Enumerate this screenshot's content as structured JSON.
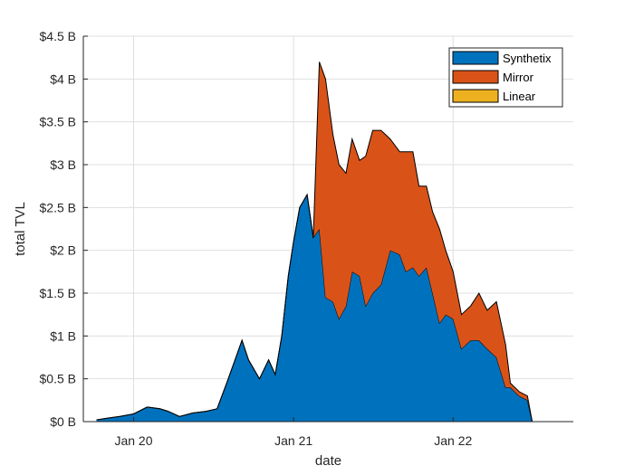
{
  "chart_data": {
    "type": "area",
    "stacked": true,
    "xlabel": "date",
    "ylabel": "total TVL",
    "x_unit": "date",
    "xlim": [
      "2019-09-08",
      "2022-10-03"
    ],
    "ylim": [
      0,
      4.5
    ],
    "x_ticks": [
      {
        "value": "2020-01-01",
        "label": "Jan 20"
      },
      {
        "value": "2021-01-01",
        "label": "Jan 21"
      },
      {
        "value": "2022-01-01",
        "label": "Jan 22"
      }
    ],
    "y_ticks": [
      {
        "value": 0,
        "label": "$0 B"
      },
      {
        "value": 0.5,
        "label": "$0.5 B"
      },
      {
        "value": 1,
        "label": "$1 B"
      },
      {
        "value": 1.5,
        "label": "$1.5 B"
      },
      {
        "value": 2,
        "label": "$2 B"
      },
      {
        "value": 2.5,
        "label": "$2.5 B"
      },
      {
        "value": 3,
        "label": "$3 B"
      },
      {
        "value": 3.5,
        "label": "$3.5 B"
      },
      {
        "value": 4,
        "label": "$4 B"
      },
      {
        "value": 4.5,
        "label": "$4.5 B"
      }
    ],
    "grid": true,
    "legend": "top-right",
    "x": [
      "2019-10-08",
      "2019-11-01",
      "2019-12-01",
      "2020-01-01",
      "2020-02-01",
      "2020-03-01",
      "2020-03-20",
      "2020-04-15",
      "2020-05-15",
      "2020-06-15",
      "2020-07-10",
      "2020-08-01",
      "2020-08-20",
      "2020-09-05",
      "2020-09-20",
      "2020-10-15",
      "2020-11-05",
      "2020-11-20",
      "2020-12-05",
      "2020-12-20",
      "2021-01-01",
      "2021-01-15",
      "2021-02-01",
      "2021-02-15",
      "2021-03-01",
      "2021-03-15",
      "2021-04-01",
      "2021-04-15",
      "2021-05-01",
      "2021-05-15",
      "2021-06-01",
      "2021-06-15",
      "2021-07-01",
      "2021-07-20",
      "2021-08-10",
      "2021-09-01",
      "2021-09-15",
      "2021-10-01",
      "2021-10-15",
      "2021-11-01",
      "2021-11-15",
      "2021-12-01",
      "2021-12-15",
      "2022-01-01",
      "2022-01-20",
      "2022-02-10",
      "2022-03-01",
      "2022-03-20",
      "2022-04-10",
      "2022-05-01",
      "2022-05-12",
      "2022-06-01",
      "2022-06-20",
      "2022-07-01"
    ],
    "series": [
      {
        "name": "Synthetix",
        "color": "#0072BD",
        "values": [
          0.02,
          0.04,
          0.06,
          0.09,
          0.17,
          0.15,
          0.12,
          0.06,
          0.1,
          0.12,
          0.15,
          0.45,
          0.72,
          0.95,
          0.72,
          0.5,
          0.72,
          0.55,
          1.0,
          1.7,
          2.1,
          2.5,
          2.65,
          2.15,
          2.25,
          1.45,
          1.4,
          1.2,
          1.35,
          1.75,
          1.7,
          1.35,
          1.5,
          1.6,
          2.0,
          1.95,
          1.75,
          1.8,
          1.7,
          1.8,
          1.5,
          1.15,
          1.25,
          1.2,
          0.85,
          0.95,
          0.95,
          0.85,
          0.75,
          0.4,
          0.4,
          0.3,
          0.25,
          0
        ]
      },
      {
        "name": "Mirror",
        "color": "#D95319",
        "values": [
          0,
          0,
          0,
          0,
          0,
          0,
          0,
          0,
          0,
          0,
          0,
          0,
          0,
          0,
          0,
          0,
          0,
          0,
          0,
          0,
          0,
          0,
          0,
          0,
          1.95,
          2.55,
          1.95,
          1.8,
          1.55,
          1.55,
          1.35,
          1.75,
          1.9,
          1.8,
          1.3,
          1.2,
          1.4,
          1.35,
          1.05,
          0.95,
          0.95,
          1.1,
          0.75,
          0.55,
          0.4,
          0.4,
          0.55,
          0.45,
          0.65,
          0.5,
          0.05,
          0.05,
          0.05,
          0
        ]
      },
      {
        "name": "Linear",
        "color": "#EDB120",
        "values": [
          0,
          0,
          0,
          0,
          0,
          0,
          0,
          0,
          0,
          0,
          0,
          0,
          0,
          0,
          0,
          0,
          0,
          0,
          0,
          0,
          0,
          0,
          0,
          0,
          0,
          0,
          0,
          0,
          0,
          0,
          0,
          0,
          0,
          0,
          0,
          0,
          0,
          0,
          0,
          0,
          0,
          0,
          0,
          0,
          0,
          0,
          0,
          0,
          0,
          0,
          0,
          0,
          0,
          0
        ]
      }
    ]
  }
}
